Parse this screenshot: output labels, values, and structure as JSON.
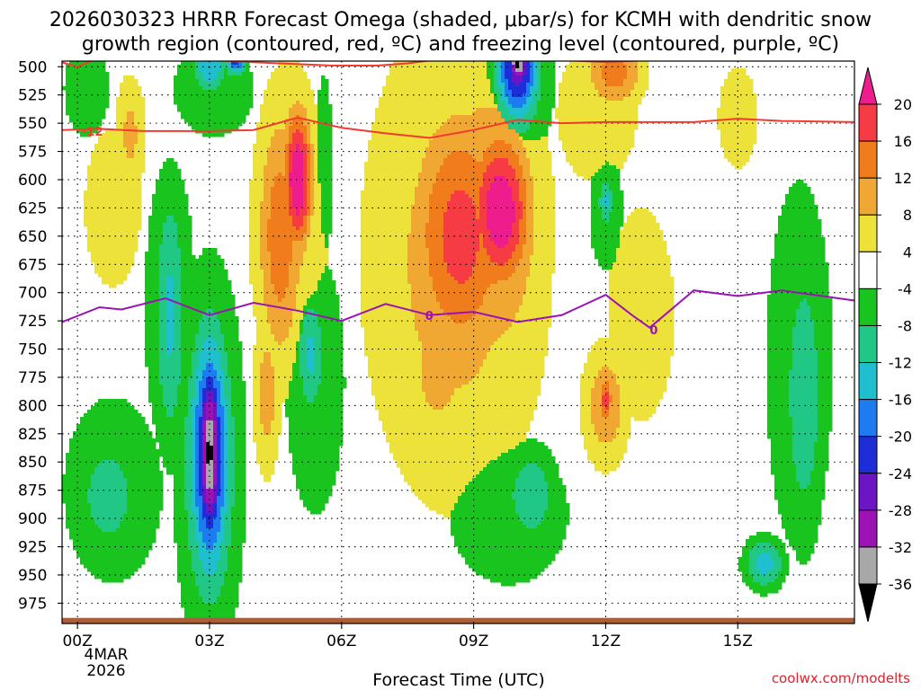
{
  "chart_data": {
    "type": "heatmap",
    "title_lines": [
      "2026030323 HRRR Forecast Omega (shaded, μbar/s) for KCMH with dendritic snow",
      "growth region (contoured, red, ºC) and freezing level (contoured, purple, ºC)"
    ],
    "xlabel": "Forecast Time (UTC)",
    "x_range_hours": [
      -0.35,
      17.65
    ],
    "x_ticks": [
      {
        "hour": 0,
        "label": "00Z"
      },
      {
        "hour": 3,
        "label": "03Z"
      },
      {
        "hour": 6,
        "label": "06Z"
      },
      {
        "hour": 9,
        "label": "09Z"
      },
      {
        "hour": 12,
        "label": "12Z"
      },
      {
        "hour": 15,
        "label": "15Z"
      }
    ],
    "date_label_lines": [
      "4MAR",
      "2026"
    ],
    "y_range_hpa": [
      495,
      993
    ],
    "y_ticks": [
      500,
      525,
      550,
      575,
      600,
      625,
      650,
      675,
      700,
      725,
      750,
      775,
      800,
      825,
      850,
      875,
      900,
      925,
      950,
      975
    ],
    "colorbar": {
      "labels": [
        "20",
        "16",
        "12",
        "8",
        "4",
        "-4",
        "-8",
        "-12",
        "-16",
        "-20",
        "-24",
        "-28",
        "-32",
        "-36"
      ],
      "bins": [
        {
          "from": 20,
          "to": 24,
          "color": "#ee1d8e"
        },
        {
          "from": 16,
          "to": 20,
          "color": "#f63b45"
        },
        {
          "from": 12,
          "to": 16,
          "color": "#f07c1c"
        },
        {
          "from": 8,
          "to": 12,
          "color": "#f0a832"
        },
        {
          "from": 4,
          "to": 8,
          "color": "#ece23a"
        },
        {
          "from": -4,
          "to": 4,
          "color": "#ffffff"
        },
        {
          "from": -8,
          "to": -4,
          "color": "#19c41e"
        },
        {
          "from": -12,
          "to": -8,
          "color": "#21c784"
        },
        {
          "from": -16,
          "to": -12,
          "color": "#1fbfd0"
        },
        {
          "from": -20,
          "to": -16,
          "color": "#1e7cf2"
        },
        {
          "from": -24,
          "to": -20,
          "color": "#1d2ed8"
        },
        {
          "from": -28,
          "to": -24,
          "color": "#6d14c4"
        },
        {
          "from": -32,
          "to": -28,
          "color": "#9d11b7"
        },
        {
          "from": -36,
          "to": -32,
          "color": "#a8a8a8"
        },
        {
          "from": -40,
          "to": -36,
          "color": "#000000"
        }
      ]
    },
    "omega_blobs": [
      {
        "t": 0.2,
        "p": 520,
        "rt": 0.8,
        "rp": 65,
        "v": -6
      },
      {
        "t": 3.1,
        "p": 520,
        "rt": 1.1,
        "rp": 50,
        "v": -8
      },
      {
        "t": 3.0,
        "p": 500,
        "rt": 0.4,
        "rp": 25,
        "v": -16
      },
      {
        "t": 3.6,
        "p": 495,
        "rt": 0.25,
        "rp": 14,
        "v": -22
      },
      {
        "t": 5.6,
        "p": 590,
        "rt": 0.3,
        "rp": 130,
        "v": -6
      },
      {
        "t": 2.1,
        "p": 715,
        "rt": 0.9,
        "rp": 210,
        "v": -6
      },
      {
        "t": 2.1,
        "p": 720,
        "rt": 0.4,
        "rp": 130,
        "v": -13
      },
      {
        "t": 3.0,
        "p": 850,
        "rt": 0.75,
        "rp": 170,
        "v": -14
      },
      {
        "t": 3.0,
        "p": 845,
        "rt": 0.48,
        "rp": 120,
        "v": -26
      },
      {
        "t": 3.0,
        "p": 842,
        "rt": 0.3,
        "rp": 85,
        "v": -37
      },
      {
        "t": 0.8,
        "p": 875,
        "rt": 1.5,
        "rp": 110,
        "v": -7
      },
      {
        "t": 0.7,
        "p": 880,
        "rt": 0.7,
        "rp": 50,
        "v": -12
      },
      {
        "t": 5.4,
        "p": 780,
        "rt": 0.8,
        "rp": 140,
        "v": -8
      },
      {
        "t": 5.3,
        "p": 755,
        "rt": 0.35,
        "rp": 60,
        "v": -13
      },
      {
        "t": 5.3,
        "p": 750,
        "rt": 0.15,
        "rp": 20,
        "v": -16
      },
      {
        "t": 10.0,
        "p": 515,
        "rt": 0.8,
        "rp": 70,
        "v": -12
      },
      {
        "t": 10.0,
        "p": 500,
        "rt": 0.5,
        "rp": 50,
        "v": -27
      },
      {
        "t": 10.0,
        "p": 498,
        "rt": 0.25,
        "rp": 20,
        "v": -37
      },
      {
        "t": 9.8,
        "p": 895,
        "rt": 1.8,
        "rp": 85,
        "v": -7
      },
      {
        "t": 10.3,
        "p": 880,
        "rt": 0.7,
        "rp": 50,
        "v": -11
      },
      {
        "t": 12.0,
        "p": 625,
        "rt": 0.5,
        "rp": 75,
        "v": -7
      },
      {
        "t": 12.0,
        "p": 620,
        "rt": 0.2,
        "rp": 25,
        "v": -13
      },
      {
        "t": 16.4,
        "p": 765,
        "rt": 1.0,
        "rp": 220,
        "v": -7
      },
      {
        "t": 16.5,
        "p": 790,
        "rt": 0.55,
        "rp": 150,
        "v": -11
      },
      {
        "t": 15.6,
        "p": 940,
        "rt": 0.5,
        "rp": 25,
        "v": -14
      },
      {
        "t": 0.8,
        "p": 625,
        "rt": 1.0,
        "rp": 110,
        "v": 6
      },
      {
        "t": 1.2,
        "p": 560,
        "rt": 0.4,
        "rp": 60,
        "v": 9
      },
      {
        "t": 4.8,
        "p": 645,
        "rt": 1.0,
        "rp": 170,
        "v": 9
      },
      {
        "t": 4.6,
        "p": 650,
        "rt": 0.55,
        "rp": 120,
        "v": 15
      },
      {
        "t": 5.0,
        "p": 600,
        "rt": 0.35,
        "rp": 65,
        "v": 25
      },
      {
        "t": 4.3,
        "p": 790,
        "rt": 0.35,
        "rp": 80,
        "v": 10
      },
      {
        "t": 8.6,
        "p": 670,
        "rt": 2.3,
        "rp": 240,
        "v": 10
      },
      {
        "t": 9.3,
        "p": 640,
        "rt": 1.4,
        "rp": 140,
        "v": 14
      },
      {
        "t": 8.7,
        "p": 650,
        "rt": 1.2,
        "rp": 120,
        "v": 18
      },
      {
        "t": 9.6,
        "p": 628,
        "rt": 0.75,
        "rp": 75,
        "v": 24
      },
      {
        "t": 8.2,
        "p": 770,
        "rt": 0.6,
        "rp": 55,
        "v": 12
      },
      {
        "t": 11.8,
        "p": 540,
        "rt": 1.1,
        "rp": 75,
        "v": 8
      },
      {
        "t": 12.2,
        "p": 505,
        "rt": 0.7,
        "rp": 35,
        "v": 14
      },
      {
        "t": 12.8,
        "p": 720,
        "rt": 1.6,
        "rp": 200,
        "v": 5
      },
      {
        "t": 12.0,
        "p": 800,
        "rt": 0.6,
        "rp": 60,
        "v": 11
      },
      {
        "t": 12.0,
        "p": 795,
        "rt": 0.18,
        "rp": 25,
        "v": 18
      },
      {
        "t": 15.0,
        "p": 545,
        "rt": 0.7,
        "rp": 70,
        "v": 6
      }
    ],
    "dgz_isotherm": {
      "label": "-12",
      "label_at": {
        "hour": 0.1,
        "p": 557
      },
      "color": "#f23a30",
      "upper_points": [
        [
          -0.35,
          496
        ],
        [
          0.0,
          500
        ],
        [
          0.5,
          492
        ],
        [
          2.0,
          492
        ],
        [
          4.0,
          496
        ],
        [
          5.8,
          499
        ],
        [
          6.8,
          499
        ],
        [
          7.5,
          497
        ],
        [
          8.5,
          492
        ],
        [
          10.0,
          492
        ],
        [
          12.0,
          496
        ],
        [
          13.5,
          493
        ],
        [
          15.5,
          494
        ],
        [
          17.65,
          493
        ]
      ],
      "lower_points": [
        [
          -0.35,
          556
        ],
        [
          0.5,
          555
        ],
        [
          1.5,
          557
        ],
        [
          3.0,
          557
        ],
        [
          4.0,
          556
        ],
        [
          5.0,
          545
        ],
        [
          6.0,
          554
        ],
        [
          7.0,
          559
        ],
        [
          8.0,
          563
        ],
        [
          9.0,
          556
        ],
        [
          10.0,
          547
        ],
        [
          11.0,
          550
        ],
        [
          12.0,
          549
        ],
        [
          14.0,
          549
        ],
        [
          15.0,
          546
        ],
        [
          16.0,
          548
        ],
        [
          17.65,
          549
        ]
      ]
    },
    "freezing_level": {
      "label": "0",
      "label_positions": [
        {
          "hour": 7.9,
          "p": 720
        },
        {
          "hour": 13.0,
          "p": 733
        }
      ],
      "color": "#9b12b6",
      "points": [
        [
          -0.35,
          726
        ],
        [
          0.5,
          713
        ],
        [
          1.0,
          715
        ],
        [
          2.0,
          705
        ],
        [
          3.0,
          720
        ],
        [
          4.0,
          709
        ],
        [
          5.0,
          716
        ],
        [
          6.0,
          725
        ],
        [
          7.0,
          710
        ],
        [
          8.0,
          720
        ],
        [
          9.0,
          717
        ],
        [
          10.0,
          726
        ],
        [
          11.0,
          720
        ],
        [
          12.0,
          702
        ],
        [
          12.6,
          720
        ],
        [
          13.0,
          731
        ],
        [
          14.0,
          698
        ],
        [
          15.0,
          703
        ],
        [
          16.0,
          698
        ],
        [
          17.65,
          707
        ]
      ]
    },
    "ground": {
      "color": "#a9603a",
      "from_p": 988
    }
  },
  "credit": "coolwx.com/modelts"
}
